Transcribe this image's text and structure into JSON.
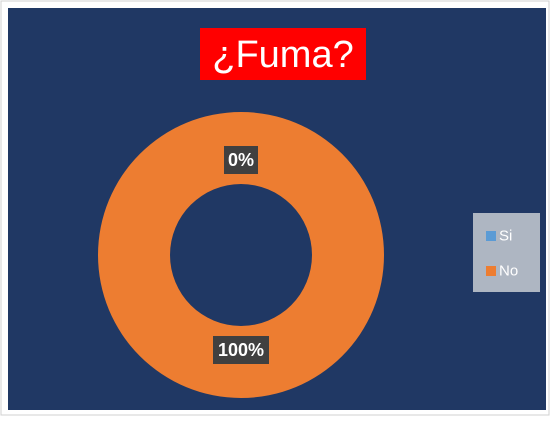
{
  "chart_data": {
    "type": "donut",
    "title": "¿Fuma?",
    "categories": [
      "Si",
      "No"
    ],
    "values": [
      0,
      100
    ],
    "value_labels": [
      "0%",
      "100%"
    ],
    "colors": [
      "#5b9bd5",
      "#ed7d31"
    ],
    "legend": "right"
  }
}
